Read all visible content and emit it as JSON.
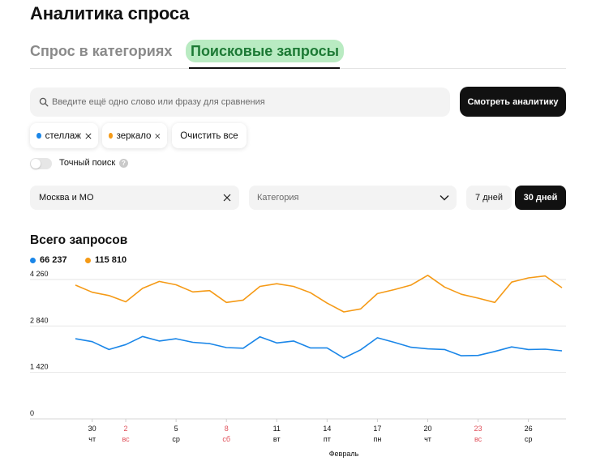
{
  "page": {
    "title": "Аналитика спроса"
  },
  "tabs": [
    {
      "label": "Спрос в категориях"
    },
    {
      "label": "Поисковые запросы",
      "active": true
    }
  ],
  "search": {
    "placeholder": "Введите ещё одно слово или фразу для сравнения",
    "value": "",
    "submit_label": "Смотреть аналитику"
  },
  "chips": [
    {
      "label": "стеллаж",
      "color": "#1a86e8",
      "icon": "close-icon"
    },
    {
      "label": "зеркало",
      "color": "#f59a16",
      "icon": "close-icon"
    }
  ],
  "clear_all_label": "Очистить все",
  "exact_search": {
    "label": "Точный поиск",
    "enabled": false,
    "help_icon": "help-icon"
  },
  "filters": {
    "region": {
      "value": "Москва и МО",
      "icon": "close-icon"
    },
    "category": {
      "placeholder": "Категория",
      "icon": "chevron-down-icon"
    },
    "periods": [
      {
        "label": "7 дней",
        "active": false
      },
      {
        "label": "30 дней",
        "active": true
      }
    ]
  },
  "chart_title": "Всего запросов",
  "legend": [
    {
      "value": "66 237",
      "color": "#1a86e8"
    },
    {
      "value": "115 810",
      "color": "#f59a16"
    }
  ],
  "chart_data": {
    "type": "line",
    "title": "Всего запросов",
    "xlabel": "Февраль",
    "ylabel": "",
    "ylim": [
      0,
      4260
    ],
    "y_ticks": [
      {
        "value": 4260,
        "label": "4 260"
      },
      {
        "value": 2840,
        "label": "2 840"
      },
      {
        "value": 1420,
        "label": "1 420"
      },
      {
        "value": 0,
        "label": "0"
      }
    ],
    "x_ticks": [
      {
        "index": 1,
        "day": "30",
        "weekday": "чт",
        "weekend": false
      },
      {
        "index": 3,
        "day": "2",
        "weekday": "вс",
        "weekend": true
      },
      {
        "index": 6,
        "day": "5",
        "weekday": "ср",
        "weekend": false
      },
      {
        "index": 9,
        "day": "8",
        "weekday": "сб",
        "weekend": true
      },
      {
        "index": 12,
        "day": "11",
        "weekday": "вт",
        "weekend": false
      },
      {
        "index": 15,
        "day": "14",
        "weekday": "пт",
        "weekend": false
      },
      {
        "index": 18,
        "day": "17",
        "weekday": "пн",
        "weekend": false
      },
      {
        "index": 21,
        "day": "20",
        "weekday": "чт",
        "weekend": false
      },
      {
        "index": 24,
        "day": "23",
        "weekday": "вс",
        "weekend": true
      },
      {
        "index": 27,
        "day": "26",
        "weekday": "ср",
        "weekend": false
      }
    ],
    "series": [
      {
        "color": "#f59a16",
        "values": [
          4090,
          3870,
          3770,
          3580,
          3990,
          4200,
          4100,
          3880,
          3920,
          3560,
          3630,
          4050,
          4130,
          4050,
          3860,
          3540,
          3270,
          3360,
          3830,
          3950,
          4090,
          4390,
          4030,
          3810,
          3690,
          3560,
          4180,
          4310,
          4370,
          4010
        ]
      },
      {
        "color": "#1a86e8",
        "values": [
          2450,
          2360,
          2120,
          2270,
          2520,
          2380,
          2450,
          2340,
          2300,
          2180,
          2160,
          2510,
          2320,
          2380,
          2170,
          2170,
          1860,
          2110,
          2480,
          2340,
          2190,
          2140,
          2120,
          1930,
          1940,
          2060,
          2200,
          2120,
          2130,
          2080
        ]
      }
    ]
  }
}
